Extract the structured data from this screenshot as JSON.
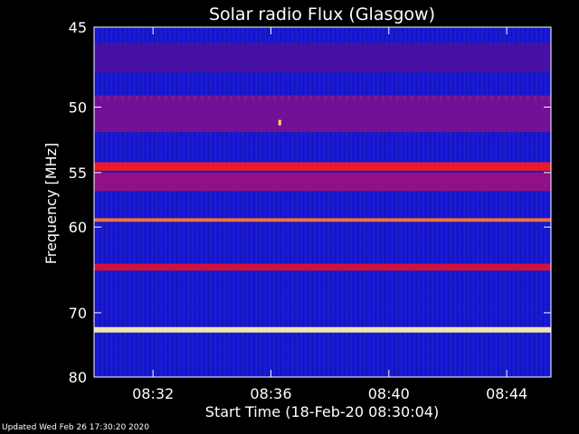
{
  "chart_data": {
    "type": "heatmap",
    "title": "Solar radio Flux (Glasgow)",
    "ylabel": "Frequency [MHz]",
    "xlabel": "Start Time (18-Feb-20 08:30:04)",
    "x_range_minutes": [
      0,
      15.5
    ],
    "y_range_mhz": [
      45,
      80
    ],
    "y_scale": "reciprocal",
    "y_ticks": [
      {
        "value": 45,
        "label": "45"
      },
      {
        "value": 50,
        "label": "50"
      },
      {
        "value": 55,
        "label": "55"
      },
      {
        "value": 60,
        "label": "60"
      },
      {
        "value": 70,
        "label": "70"
      },
      {
        "value": 80,
        "label": "80"
      }
    ],
    "x_ticks": [
      {
        "value": 2,
        "label": "08:32"
      },
      {
        "value": 6,
        "label": "08:36"
      },
      {
        "value": 10,
        "label": "08:40"
      },
      {
        "value": 14,
        "label": "08:44"
      }
    ],
    "colormap": "blue-red-yellow",
    "background_color": "#1a1ad0",
    "bands": [
      {
        "freq_mhz": 46.8,
        "width_mhz": 1.8,
        "color": "#4a10a0"
      },
      {
        "freq_mhz": 49.4,
        "width_mhz": 0.3,
        "color": "#ff9a30",
        "dashed": true
      },
      {
        "freq_mhz": 50.5,
        "width_mhz": 2.6,
        "color": "#7a1090"
      },
      {
        "freq_mhz": 54.5,
        "width_mhz": 0.7,
        "color": "#ff1a1a"
      },
      {
        "freq_mhz": 55.8,
        "width_mhz": 1.6,
        "color": "#9a1080"
      },
      {
        "freq_mhz": 59.3,
        "width_mhz": 0.35,
        "color": "#ff7a30"
      },
      {
        "freq_mhz": 64.3,
        "width_mhz": 0.8,
        "color": "#e01030"
      },
      {
        "freq_mhz": 72.4,
        "width_mhz": 0.8,
        "color": "#fff8b0"
      }
    ],
    "burst": {
      "time_min": 6.3,
      "freq_mhz": 51.1,
      "color": "#ffe060"
    }
  },
  "footer": {
    "updated": "Updated Wed Feb 26 17:30:20 2020"
  }
}
